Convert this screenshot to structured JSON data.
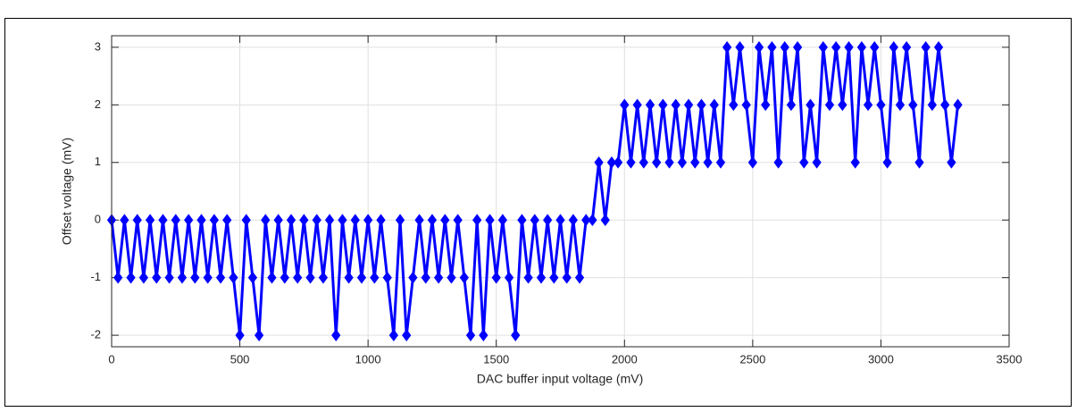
{
  "chart_data": {
    "type": "line",
    "xlabel": "DAC buffer input voltage (mV)",
    "ylabel": "Offset voltage (mV)",
    "x": [
      0,
      25,
      50,
      75,
      100,
      125,
      150,
      175,
      200,
      225,
      250,
      275,
      300,
      325,
      350,
      375,
      400,
      425,
      450,
      475,
      500,
      525,
      550,
      575,
      600,
      625,
      650,
      675,
      700,
      725,
      750,
      775,
      800,
      825,
      850,
      875,
      900,
      925,
      950,
      975,
      1000,
      1025,
      1050,
      1075,
      1100,
      1125,
      1150,
      1175,
      1200,
      1225,
      1250,
      1275,
      1300,
      1325,
      1350,
      1375,
      1400,
      1425,
      1450,
      1475,
      1500,
      1525,
      1550,
      1575,
      1600,
      1625,
      1650,
      1675,
      1700,
      1725,
      1750,
      1775,
      1800,
      1825,
      1850,
      1875,
      1900,
      1925,
      1950,
      1975,
      2000,
      2025,
      2050,
      2075,
      2100,
      2125,
      2150,
      2175,
      2200,
      2225,
      2250,
      2275,
      2300,
      2325,
      2350,
      2375,
      2400,
      2425,
      2450,
      2475,
      2500,
      2525,
      2550,
      2575,
      2600,
      2625,
      2650,
      2675,
      2700,
      2725,
      2750,
      2775,
      2800,
      2825,
      2850,
      2875,
      2900,
      2925,
      2950,
      2975,
      3000,
      3025,
      3050,
      3075,
      3100,
      3125,
      3150,
      3175,
      3200,
      3225,
      3250,
      3275,
      3300
    ],
    "series": [
      {
        "name": "Offset voltage",
        "color": "#0000ff",
        "values": [
          0,
          -1,
          0,
          -1,
          0,
          -1,
          0,
          -1,
          0,
          -1,
          0,
          -1,
          0,
          -1,
          0,
          -1,
          0,
          -1,
          0,
          -1,
          -2,
          0,
          -1,
          -2,
          0,
          -1,
          0,
          -1,
          0,
          -1,
          0,
          -1,
          0,
          -1,
          0,
          -2,
          0,
          -1,
          0,
          -1,
          0,
          -1,
          0,
          -1,
          -2,
          0,
          -2,
          -1,
          0,
          -1,
          0,
          -1,
          0,
          -1,
          0,
          -1,
          -2,
          0,
          -2,
          0,
          -1,
          0,
          -1,
          -2,
          0,
          -1,
          0,
          -1,
          0,
          -1,
          0,
          -1,
          0,
          -1,
          0,
          0,
          1,
          0,
          1,
          1,
          2,
          1,
          2,
          1,
          2,
          1,
          2,
          1,
          2,
          1,
          2,
          1,
          2,
          1,
          2,
          1,
          3,
          2,
          3,
          2,
          1,
          3,
          2,
          3,
          1,
          3,
          2,
          3,
          1,
          2,
          1,
          3,
          2,
          3,
          2,
          3,
          1,
          3,
          2,
          3,
          2,
          1,
          3,
          2,
          3,
          2,
          1,
          3,
          2,
          3,
          2,
          1,
          2
        ]
      }
    ],
    "xlim": [
      0,
      3500
    ],
    "xticks": [
      0,
      500,
      1000,
      1500,
      2000,
      2500,
      3000,
      3500
    ],
    "ylim": [
      -2.2,
      3.2
    ],
    "yticks": [
      -2,
      -1,
      0,
      1,
      2,
      3
    ],
    "grid": true
  }
}
